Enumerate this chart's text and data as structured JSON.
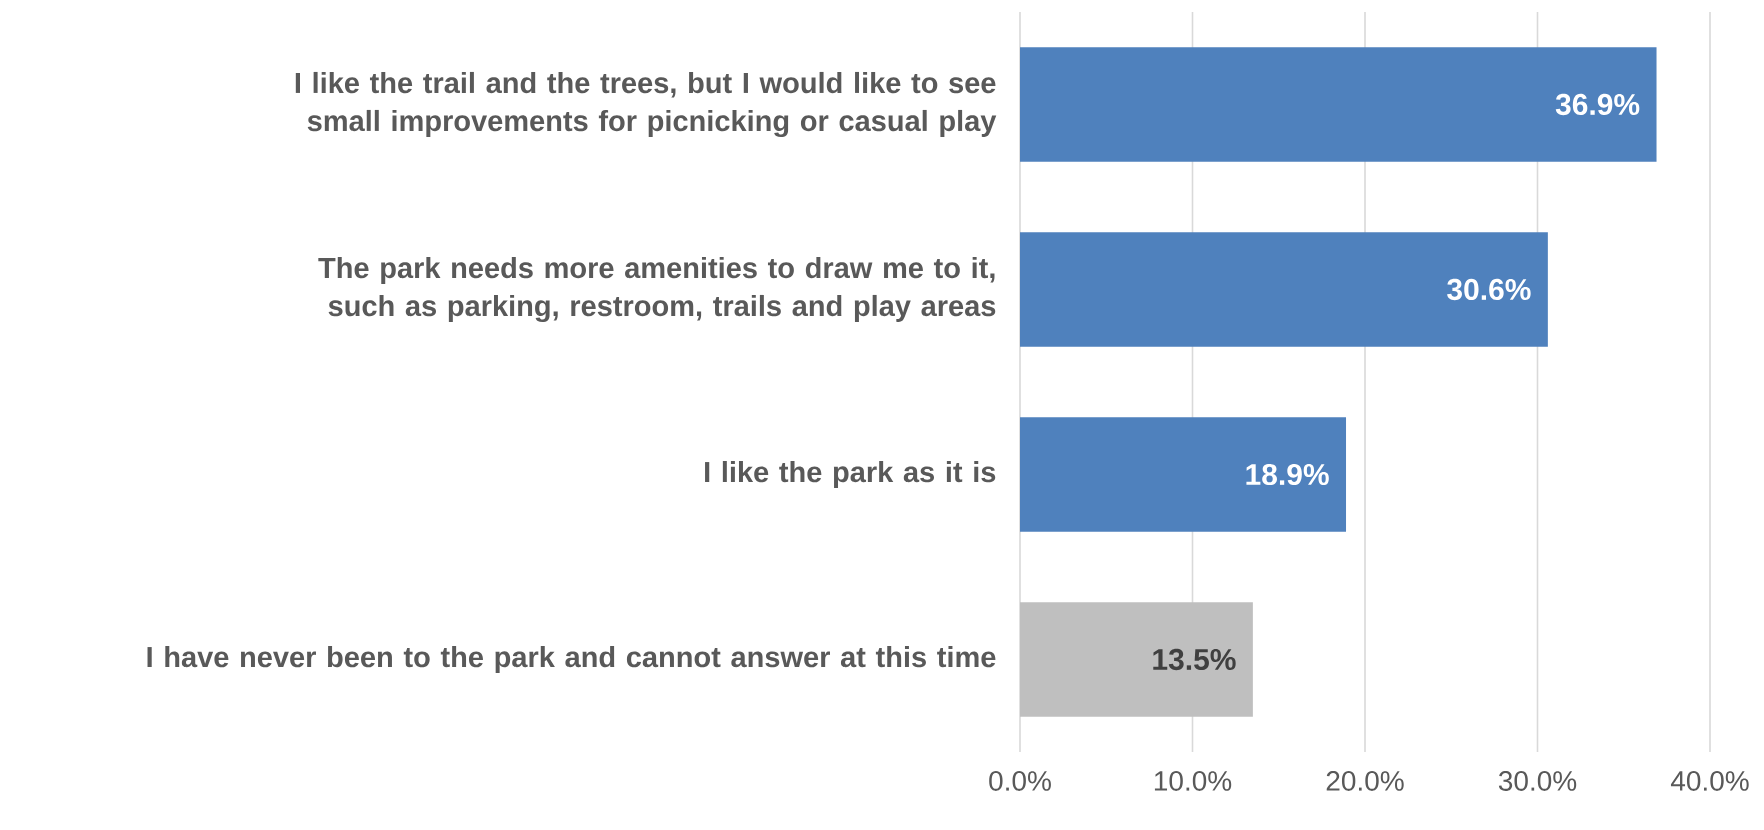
{
  "chart_data": {
    "type": "bar",
    "orientation": "horizontal",
    "categories": [
      "I like the trail and the trees, but I would like to see small improvements for picnicking or casual play",
      "The park needs more amenities to draw me to it, such as parking, restroom, trails and play areas",
      "I like the park as it is",
      "I have never been to the park and cannot answer at this time"
    ],
    "values": [
      36.9,
      30.6,
      18.9,
      13.5
    ],
    "colors": [
      "#4f81bd",
      "#4f81bd",
      "#4f81bd",
      "#bfbfbf"
    ],
    "value_labels": [
      "36.9%",
      "30.6%",
      "18.9%",
      "13.5%"
    ],
    "xlim": [
      0,
      40
    ],
    "xticks": [
      {
        "value": 0,
        "label": "0.0%"
      },
      {
        "value": 10,
        "label": "10.0%"
      },
      {
        "value": 20,
        "label": "20.0%"
      },
      {
        "value": 30,
        "label": "30.0%"
      },
      {
        "value": 40,
        "label": "40.0%"
      }
    ],
    "grid": "x"
  }
}
